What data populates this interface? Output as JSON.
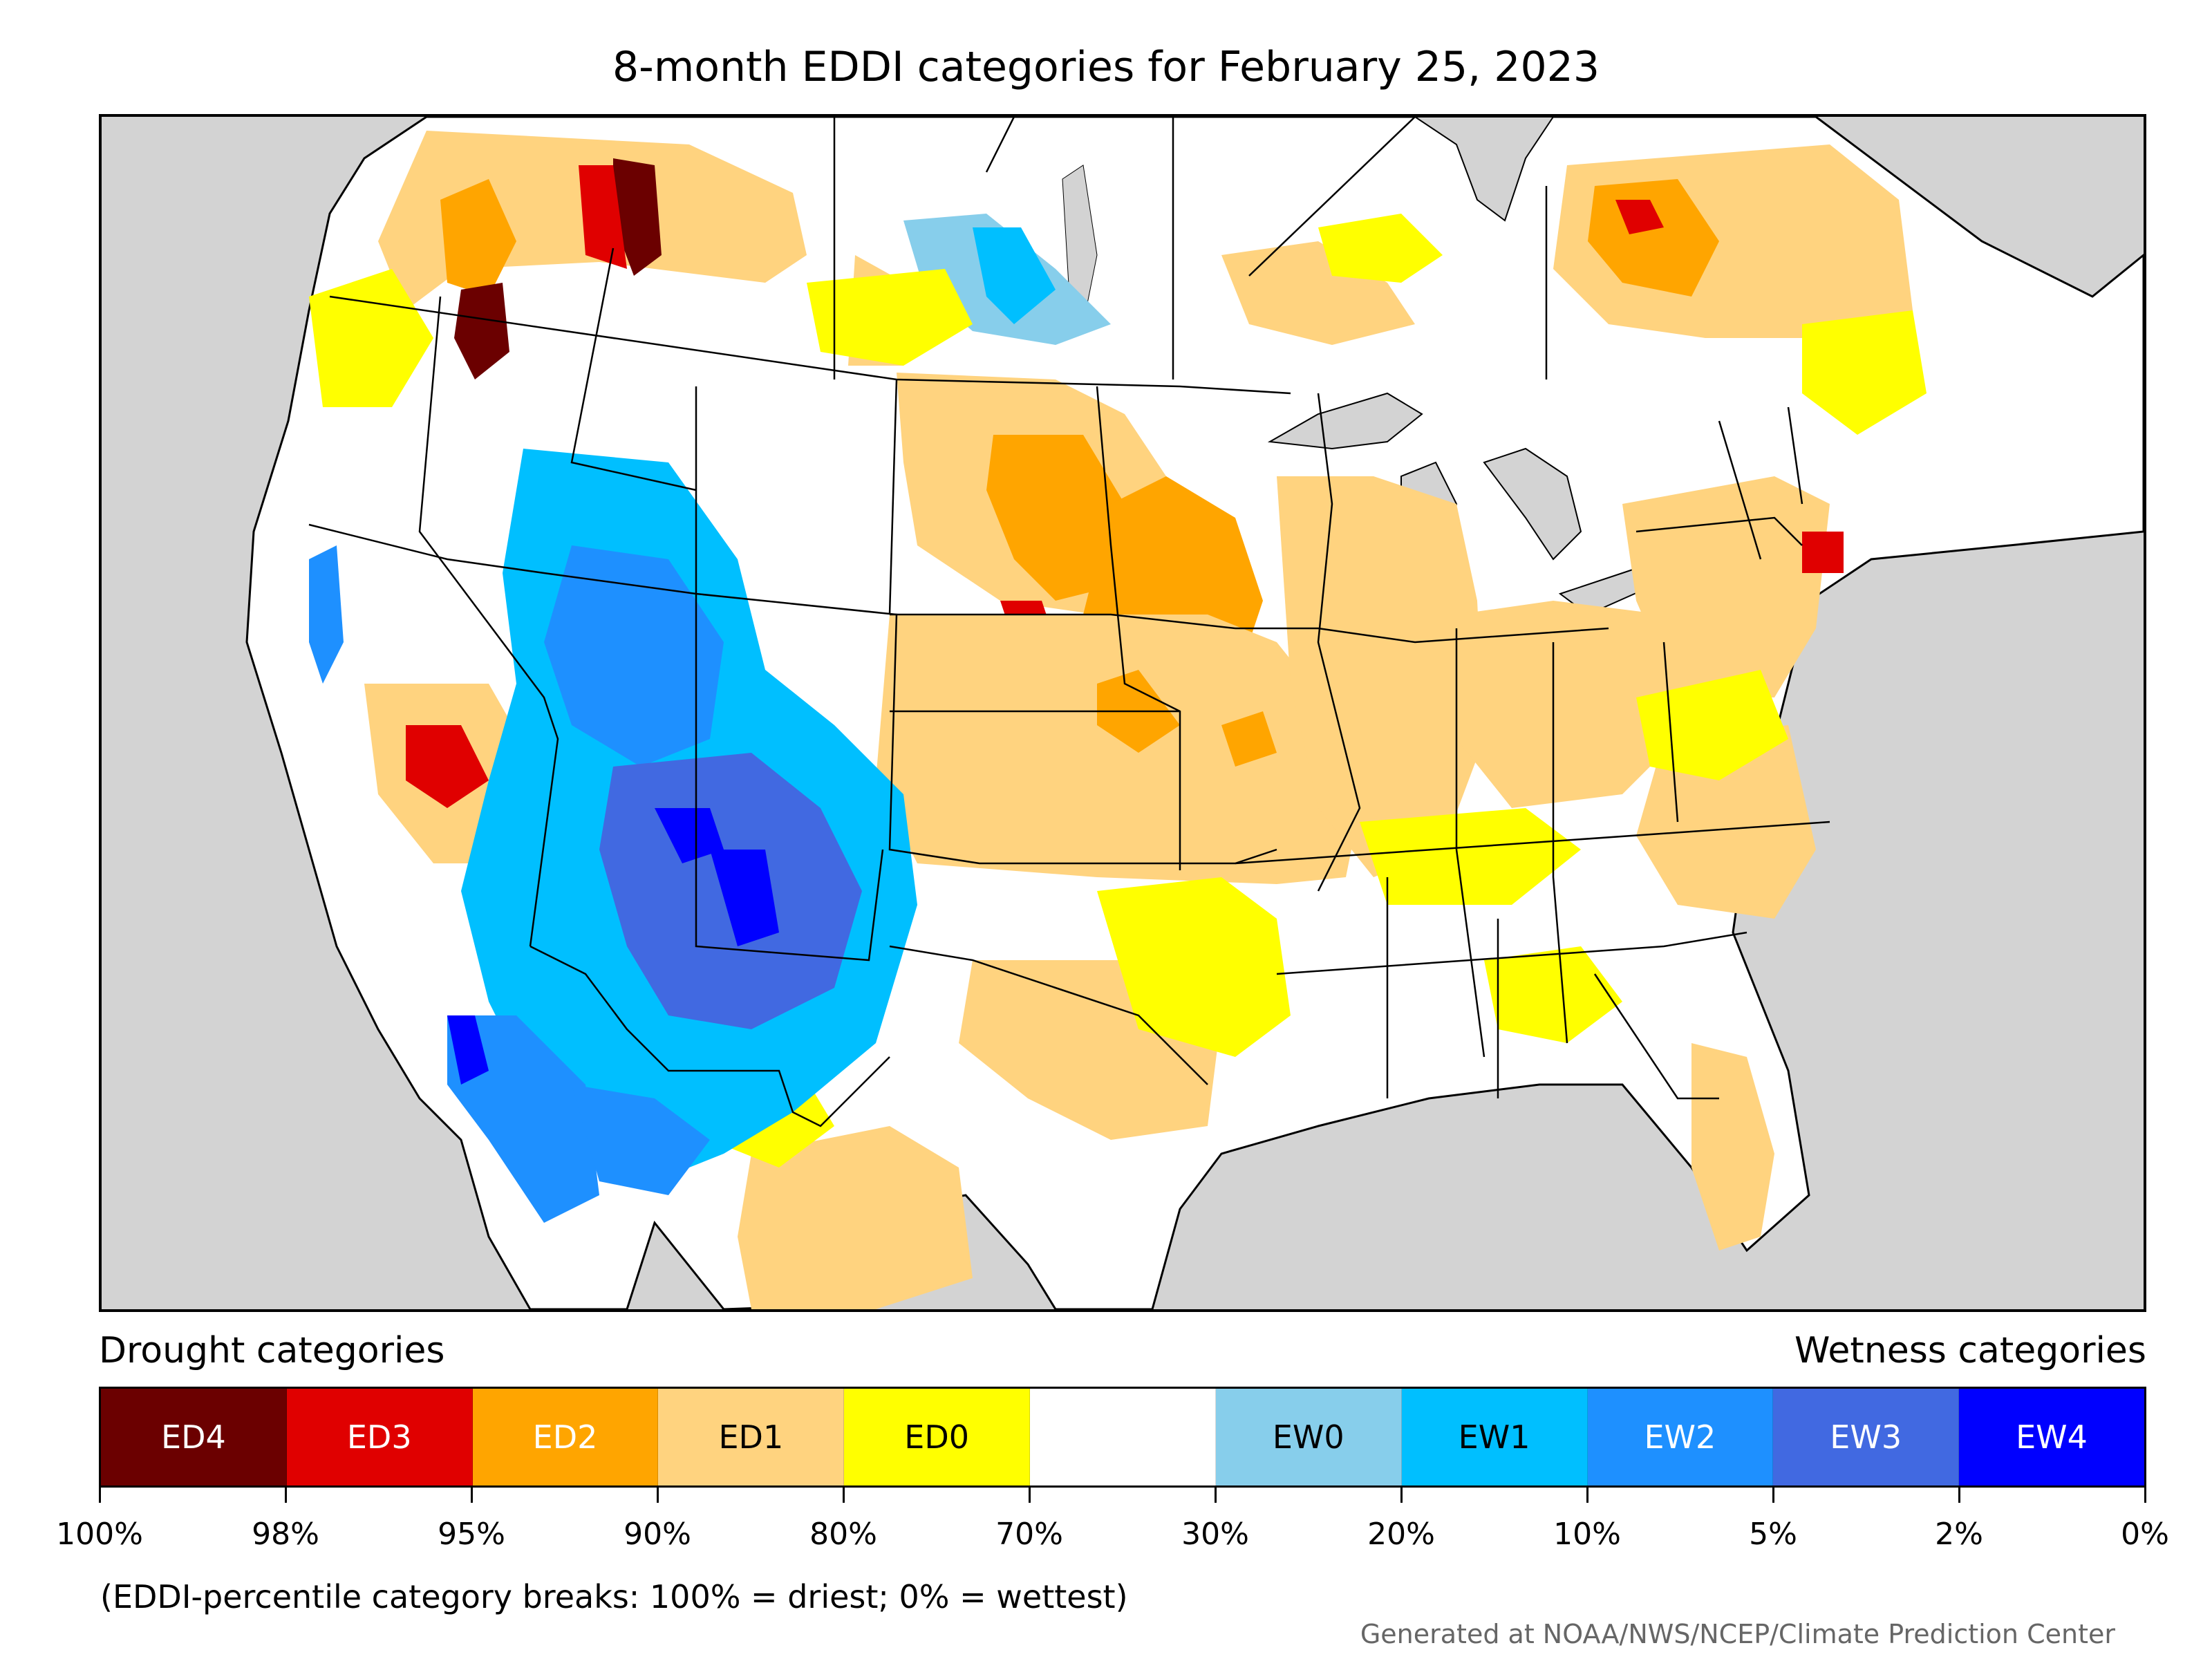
{
  "title": "8-month EDDI categories for February 25, 2023",
  "legend": {
    "drought_heading": "Drought categories",
    "wetness_heading": "Wetness categories",
    "categories": [
      {
        "label": "ED4",
        "color": "#6b0000",
        "text_color": "#ffffff"
      },
      {
        "label": "ED3",
        "color": "#e00000",
        "text_color": "#ffffff"
      },
      {
        "label": "ED2",
        "color": "#ffa500",
        "text_color": "#ffffff"
      },
      {
        "label": "ED1",
        "color": "#ffd37f",
        "text_color": "#000000"
      },
      {
        "label": "ED0",
        "color": "#ffff00",
        "text_color": "#000000"
      },
      {
        "label": "",
        "color": "#ffffff",
        "text_color": "#000000"
      },
      {
        "label": "EW0",
        "color": "#87ceeb",
        "text_color": "#000000"
      },
      {
        "label": "EW1",
        "color": "#00bfff",
        "text_color": "#000000"
      },
      {
        "label": "EW2",
        "color": "#1e90ff",
        "text_color": "#ffffff"
      },
      {
        "label": "EW3",
        "color": "#4169e1",
        "text_color": "#ffffff"
      },
      {
        "label": "EW4",
        "color": "#0000ff",
        "text_color": "#ffffff"
      }
    ],
    "tick_labels": [
      "100%",
      "98%",
      "95%",
      "90%",
      "80%",
      "70%",
      "30%",
      "20%",
      "10%",
      "5%",
      "2%",
      "0%"
    ]
  },
  "note": "(EDDI-percentile category breaks: 100% = driest; 0% = wettest)",
  "credit": "Generated at NOAA/NWS/NCEP/Climate Prediction Center"
}
